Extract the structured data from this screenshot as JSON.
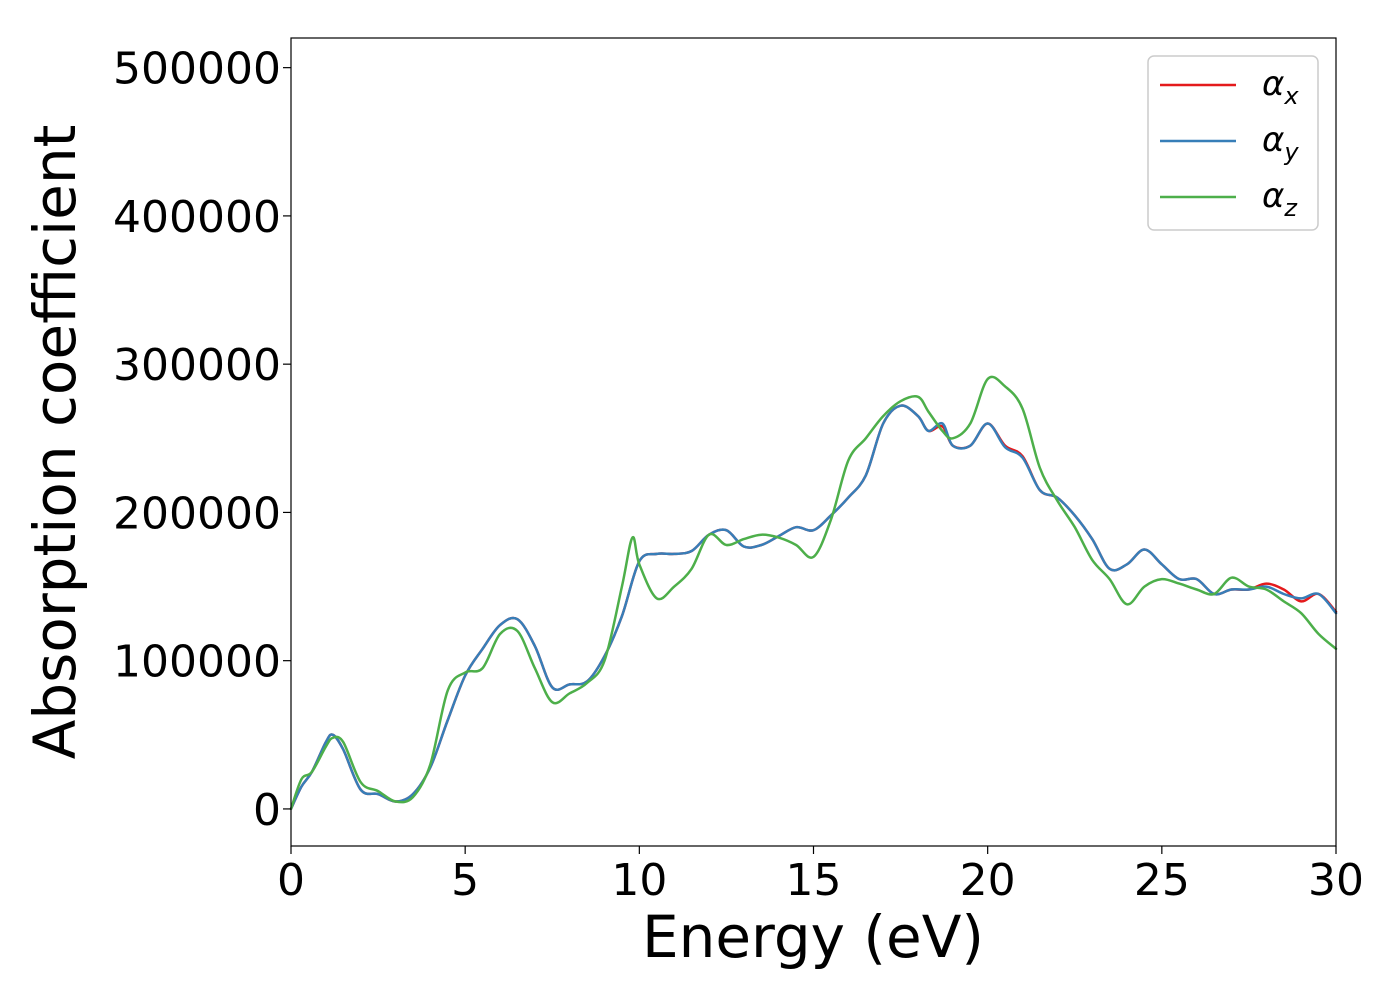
{
  "chart_data": {
    "type": "line",
    "xlabel": "Energy (eV)",
    "ylabel": "Absorption coefficient",
    "xlim": [
      0,
      30
    ],
    "ylim": [
      -25000,
      520000
    ],
    "xticks": [
      0,
      5,
      10,
      15,
      20,
      25,
      30
    ],
    "yticks": [
      0,
      100000,
      200000,
      300000,
      400000,
      500000
    ],
    "xtick_labels": [
      "0",
      "5",
      "10",
      "15",
      "20",
      "25",
      "30"
    ],
    "ytick_labels": [
      "0",
      "100000",
      "200000",
      "300000",
      "400000",
      "500000"
    ],
    "grid": false,
    "legend_position": "top-right",
    "series": [
      {
        "name": "α",
        "subscript": "x",
        "color": "#e41a1c",
        "x": [
          0,
          0.3,
          0.6,
          1.0,
          1.2,
          1.5,
          2.0,
          2.5,
          3.0,
          3.5,
          4.0,
          4.5,
          5.0,
          5.5,
          6.0,
          6.5,
          7.0,
          7.5,
          8.0,
          8.5,
          9.0,
          9.5,
          10.0,
          10.5,
          11.0,
          11.5,
          12.0,
          12.5,
          13.0,
          13.5,
          14.0,
          14.5,
          15.0,
          15.5,
          16.0,
          16.5,
          17.0,
          17.5,
          18.0,
          18.3,
          18.7,
          19.0,
          19.5,
          20.0,
          20.5,
          21.0,
          21.5,
          22.0,
          22.5,
          23.0,
          23.5,
          24.0,
          24.5,
          25.0,
          25.5,
          26.0,
          26.5,
          27.0,
          27.5,
          28.0,
          28.5,
          29.0,
          29.5,
          30.0
        ],
        "y": [
          0,
          15000,
          25000,
          45000,
          50000,
          40000,
          13000,
          10000,
          5000,
          10000,
          28000,
          60000,
          90000,
          108000,
          124000,
          128000,
          110000,
          82000,
          84000,
          86000,
          103000,
          130000,
          167000,
          172000,
          172000,
          174000,
          185000,
          188000,
          177000,
          178000,
          184000,
          190000,
          188000,
          198000,
          210000,
          225000,
          260000,
          272000,
          265000,
          255000,
          258000,
          245000,
          245000,
          260000,
          245000,
          238000,
          215000,
          210000,
          198000,
          182000,
          162000,
          165000,
          175000,
          165000,
          155000,
          155000,
          145000,
          148000,
          148000,
          152000,
          148000,
          140000,
          145000,
          133000
        ]
      },
      {
        "name": "α",
        "subscript": "y",
        "color": "#377eb8",
        "x": [
          0,
          0.3,
          0.6,
          1.0,
          1.2,
          1.5,
          2.0,
          2.5,
          3.0,
          3.5,
          4.0,
          4.5,
          5.0,
          5.5,
          6.0,
          6.5,
          7.0,
          7.5,
          8.0,
          8.5,
          9.0,
          9.5,
          10.0,
          10.5,
          11.0,
          11.5,
          12.0,
          12.5,
          13.0,
          13.5,
          14.0,
          14.5,
          15.0,
          15.5,
          16.0,
          16.5,
          17.0,
          17.5,
          18.0,
          18.3,
          18.7,
          19.0,
          19.5,
          20.0,
          20.5,
          21.0,
          21.5,
          22.0,
          22.5,
          23.0,
          23.5,
          24.0,
          24.5,
          25.0,
          25.5,
          26.0,
          26.5,
          27.0,
          27.5,
          28.0,
          28.5,
          29.0,
          29.5,
          30.0
        ],
        "y": [
          0,
          15000,
          25000,
          45000,
          50000,
          40000,
          13000,
          10000,
          5000,
          10000,
          28000,
          60000,
          90000,
          108000,
          124000,
          128000,
          110000,
          82000,
          84000,
          86000,
          103000,
          130000,
          167000,
          172000,
          172000,
          174000,
          185000,
          188000,
          177000,
          178000,
          184000,
          190000,
          188000,
          198000,
          210000,
          225000,
          260000,
          272000,
          265000,
          255000,
          260000,
          245000,
          245000,
          260000,
          244000,
          237000,
          215000,
          210000,
          198000,
          182000,
          162000,
          165000,
          175000,
          165000,
          155000,
          155000,
          145000,
          148000,
          148000,
          150000,
          145000,
          142000,
          145000,
          132000
        ]
      },
      {
        "name": "α",
        "subscript": "z",
        "color": "#4daf4a",
        "x": [
          0,
          0.3,
          0.6,
          1.0,
          1.2,
          1.5,
          2.0,
          2.5,
          3.0,
          3.5,
          4.0,
          4.5,
          5.0,
          5.5,
          6.0,
          6.5,
          7.0,
          7.5,
          8.0,
          8.5,
          9.0,
          9.5,
          9.8,
          10.0,
          10.5,
          11.0,
          11.5,
          12.0,
          12.5,
          13.0,
          13.5,
          14.0,
          14.5,
          15.0,
          15.5,
          16.0,
          16.5,
          17.0,
          17.5,
          18.0,
          18.3,
          18.7,
          19.0,
          19.5,
          20.0,
          20.5,
          21.0,
          21.5,
          22.0,
          22.5,
          23.0,
          23.5,
          24.0,
          24.5,
          25.0,
          25.5,
          26.0,
          26.5,
          27.0,
          27.5,
          28.0,
          28.5,
          29.0,
          29.5,
          30.0
        ],
        "y": [
          0,
          20000,
          25000,
          42000,
          48000,
          45000,
          18000,
          12000,
          5000,
          8000,
          30000,
          80000,
          92000,
          95000,
          118000,
          120000,
          95000,
          72000,
          78000,
          85000,
          100000,
          150000,
          183000,
          165000,
          142000,
          150000,
          162000,
          185000,
          178000,
          182000,
          185000,
          183000,
          178000,
          170000,
          195000,
          235000,
          250000,
          265000,
          275000,
          278000,
          268000,
          255000,
          250000,
          260000,
          290000,
          285000,
          270000,
          230000,
          208000,
          190000,
          168000,
          155000,
          138000,
          150000,
          155000,
          152000,
          148000,
          145000,
          156000,
          150000,
          148000,
          140000,
          132000,
          118000,
          108000
        ]
      }
    ]
  }
}
